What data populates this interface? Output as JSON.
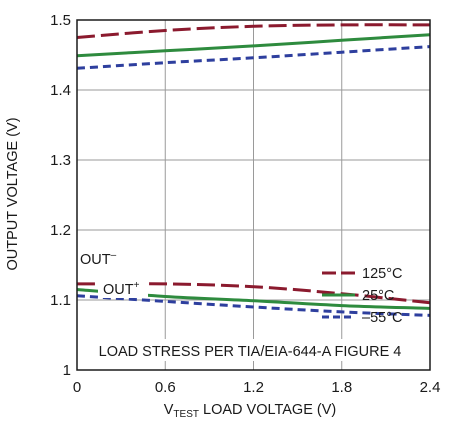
{
  "chart_data": {
    "type": "line",
    "title": "",
    "xlabel": {
      "prefix": "V",
      "sub": "TEST",
      "suffix": " LOAD VOLTAGE (V)"
    },
    "ylabel": "OUTPUT VOLTAGE (V)",
    "xlim": [
      0,
      2.4
    ],
    "ylim": [
      1.0,
      1.5
    ],
    "xticks": [
      "0",
      "0.6",
      "1.2",
      "1.8",
      "2.4"
    ],
    "yticks": [
      "1",
      "1.1",
      "1.2",
      "1.3",
      "1.4",
      "1.5"
    ],
    "grid": true,
    "legend_position": "top-right",
    "annotations": {
      "out_plus": {
        "base": "OUT",
        "sup": "+"
      },
      "out_minus": {
        "base": "OUT",
        "sup": "–"
      },
      "footer": "LOAD STRESS PER TIA/EIA-644-A FIGURE 4"
    },
    "series": [
      {
        "name": "125°C",
        "color": "#8b1a2e",
        "dash": "long-dash",
        "group": "OUT+",
        "x": [
          0,
          0.6,
          1.2,
          1.8,
          2.4
        ],
        "y": [
          1.475,
          1.485,
          1.491,
          1.493,
          1.493
        ]
      },
      {
        "name": "25°C",
        "color": "#2e8b3e",
        "dash": "solid",
        "group": "OUT+",
        "x": [
          0,
          0.6,
          1.2,
          1.8,
          2.4
        ],
        "y": [
          1.449,
          1.456,
          1.463,
          1.471,
          1.479
        ]
      },
      {
        "name": "–55°C",
        "color": "#2e3f9e",
        "dash": "short-dash",
        "group": "OUT+",
        "x": [
          0,
          0.6,
          1.2,
          1.8,
          2.4
        ],
        "y": [
          1.431,
          1.439,
          1.446,
          1.454,
          1.462
        ]
      },
      {
        "name": "125°C",
        "color": "#8b1a2e",
        "dash": "long-dash",
        "group": "OUT-",
        "x": [
          0,
          0.6,
          1.2,
          1.8,
          2.4
        ],
        "y": [
          1.123,
          1.123,
          1.119,
          1.109,
          1.096
        ]
      },
      {
        "name": "25°C",
        "color": "#2e8b3e",
        "dash": "solid",
        "group": "OUT-",
        "x": [
          0,
          0.6,
          1.2,
          1.8,
          2.4
        ],
        "y": [
          1.115,
          1.105,
          1.099,
          1.092,
          1.088
        ]
      },
      {
        "name": "–55°C",
        "color": "#2e3f9e",
        "dash": "short-dash",
        "group": "OUT-",
        "x": [
          0,
          0.6,
          1.2,
          1.8,
          2.4
        ],
        "y": [
          1.106,
          1.098,
          1.09,
          1.083,
          1.078
        ]
      }
    ],
    "legend": [
      {
        "label": "125°C",
        "color": "#8b1a2e",
        "dash": "long-dash"
      },
      {
        "label": "25°C",
        "color": "#2e8b3e",
        "dash": "solid"
      },
      {
        "label": "–55°C",
        "color": "#2e3f9e",
        "dash": "short-dash"
      }
    ]
  }
}
